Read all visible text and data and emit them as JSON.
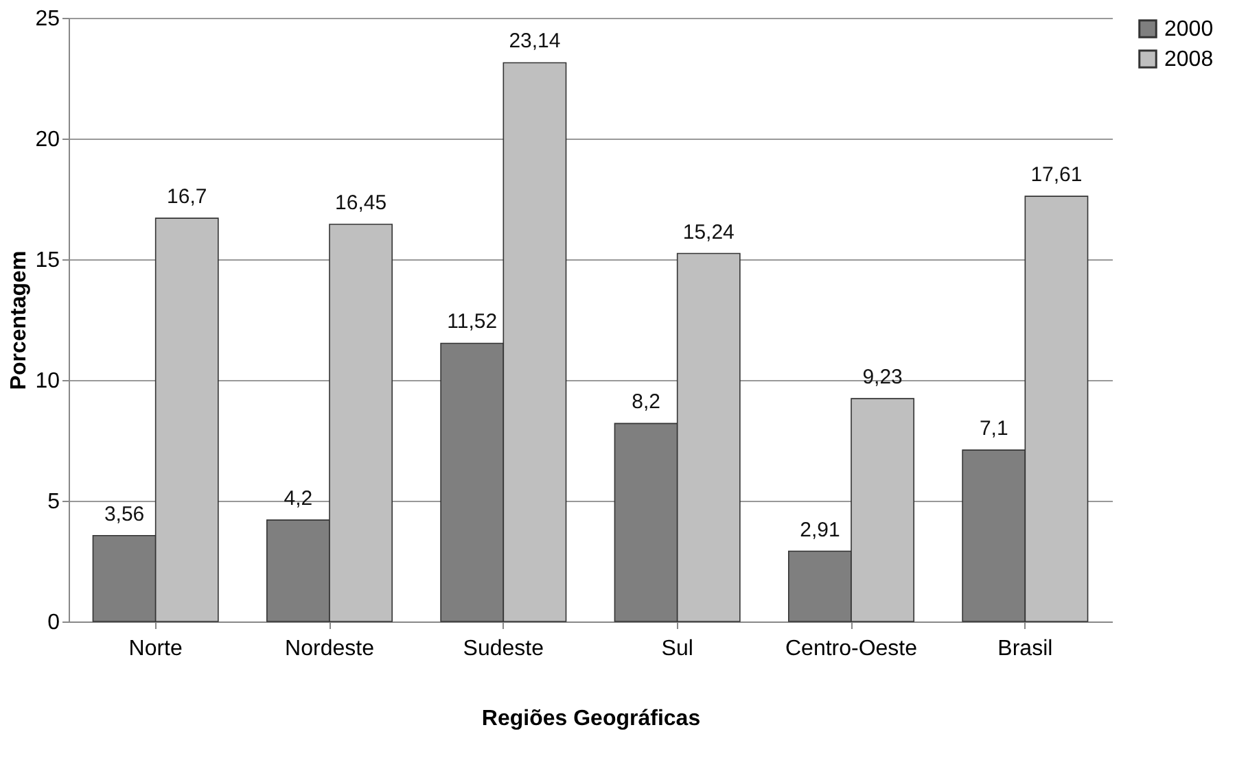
{
  "chart_data": {
    "type": "bar",
    "xlabel": "Regiões Geográficas",
    "ylabel": "Porcentagem",
    "categories": [
      "Norte",
      "Nordeste",
      "Sudeste",
      "Sul",
      "Centro-Oeste",
      "Brasil"
    ],
    "series": [
      {
        "name": "2000",
        "color": "#7f7f7f",
        "values": [
          3.56,
          4.2,
          11.52,
          8.2,
          2.91,
          7.1
        ],
        "value_labels": [
          "3,56",
          "4,2",
          "11,52",
          "8,2",
          "2,91",
          "7,1"
        ]
      },
      {
        "name": "2008",
        "color": "#bfbfbf",
        "values": [
          16.7,
          16.45,
          23.14,
          15.24,
          9.23,
          17.61
        ],
        "value_labels": [
          "16,7",
          "16,45",
          "23,14",
          "15,24",
          "9,23",
          "17,61"
        ]
      }
    ],
    "ylim": [
      0,
      25
    ],
    "yticks": [
      0,
      5,
      10,
      15,
      20,
      25
    ],
    "grid": "y",
    "legend": "right"
  }
}
